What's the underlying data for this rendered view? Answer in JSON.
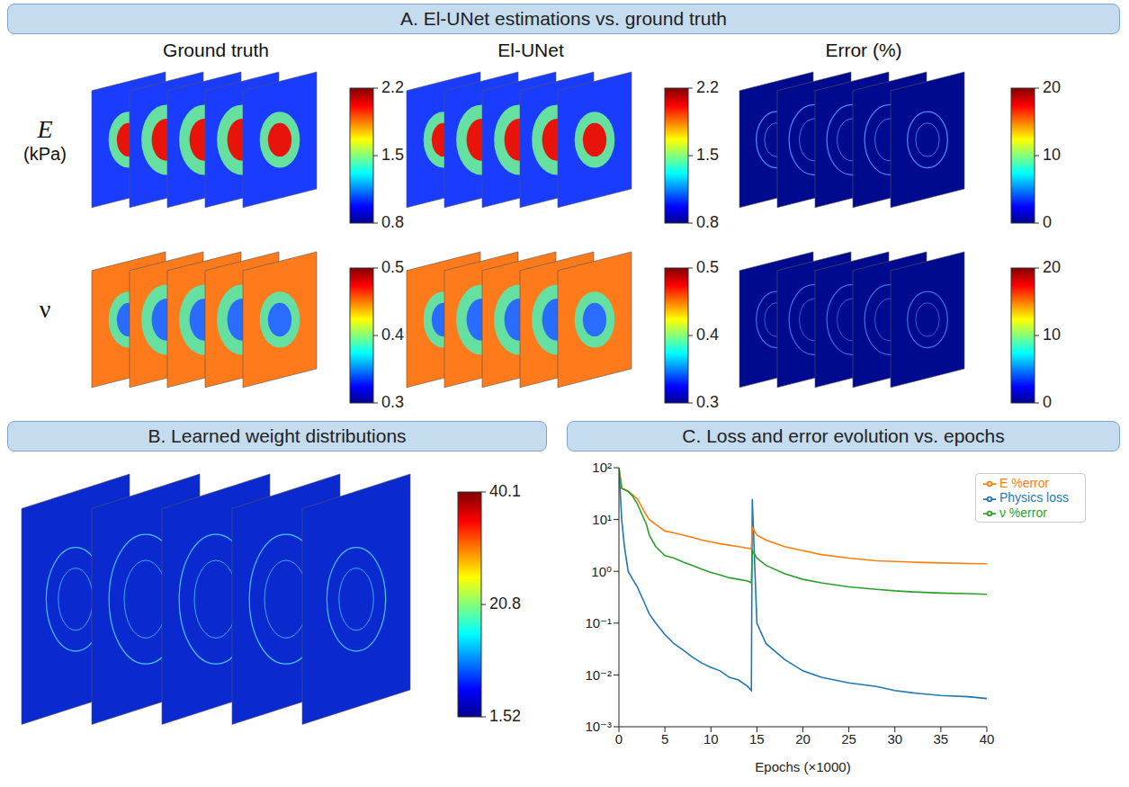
{
  "panels": {
    "A": {
      "title": "A. El-UNet estimations vs. ground truth",
      "columns": [
        "Ground truth",
        "El-UNet",
        "Error (%)"
      ],
      "rows": [
        {
          "label": "E",
          "unit": "(kPa)",
          "colorbar": {
            "range": [
              0.8,
              2.2
            ],
            "ticks": [
              0.8,
              1.5,
              2.2
            ]
          },
          "error_colorbar": {
            "range": [
              0,
              20
            ],
            "ticks": [
              0,
              10,
              20
            ]
          }
        },
        {
          "label": "ν",
          "colorbar": {
            "range": [
              0.3,
              0.5
            ],
            "ticks": [
              0.3,
              0.4,
              0.5
            ]
          },
          "error_colorbar": {
            "range": [
              0,
              20
            ],
            "ticks": [
              0,
              10,
              20
            ]
          }
        }
      ]
    },
    "B": {
      "title": "B. Learned weight distributions",
      "colorbar": {
        "range": [
          1.52,
          40.1
        ],
        "ticks": [
          1.52,
          20.8,
          40.1
        ]
      }
    }
  },
  "chart_data": {
    "type": "line",
    "title": "C. Loss and error evolution vs. epochs",
    "x_label": "Epochs (×1000)",
    "x": [
      0,
      0.3,
      0.6,
      1,
      1.5,
      2,
      3,
      3.3,
      4,
      5,
      6,
      7,
      8,
      9,
      10,
      11,
      12,
      13,
      14,
      14.4,
      14.5,
      15,
      16,
      18,
      20,
      22,
      25,
      28,
      30,
      32,
      35,
      38,
      40
    ],
    "series": [
      {
        "name": "Physics loss",
        "color": "#1f77b4",
        "values": [
          100,
          10,
          3,
          1,
          0.7,
          0.5,
          0.2,
          0.15,
          0.1,
          0.06,
          0.04,
          0.03,
          0.022,
          0.017,
          0.014,
          0.012,
          0.009,
          0.008,
          0.006,
          0.005,
          25,
          0.1,
          0.04,
          0.02,
          0.012,
          0.009,
          0.007,
          0.006,
          0.005,
          0.0045,
          0.004,
          0.0038,
          0.0035
        ]
      },
      {
        "name": "E %error",
        "color": "#ff7f0e",
        "values": [
          100,
          40,
          38,
          35,
          30,
          25,
          12,
          10,
          8,
          6,
          5.5,
          5,
          4.5,
          4,
          3.7,
          3.4,
          3.2,
          3,
          2.8,
          2.7,
          7,
          5,
          4,
          3,
          2.5,
          2.1,
          1.8,
          1.6,
          1.55,
          1.5,
          1.45,
          1.42,
          1.4
        ]
      },
      {
        "name": "ν %error",
        "color": "#2ca02c",
        "values": [
          100,
          40,
          38,
          35,
          28,
          20,
          8,
          5,
          3,
          2,
          1.8,
          1.5,
          1.3,
          1.1,
          0.95,
          0.85,
          0.75,
          0.7,
          0.65,
          0.6,
          2.5,
          1.8,
          1.3,
          0.9,
          0.7,
          0.6,
          0.5,
          0.45,
          0.42,
          0.4,
          0.38,
          0.37,
          0.36
        ]
      }
    ],
    "xlim": [
      0,
      40
    ],
    "xticks": [
      0,
      5,
      10,
      15,
      20,
      25,
      30,
      35,
      40
    ],
    "ylim": [
      0.001,
      100
    ],
    "yticks": [
      {
        "value": 0.001,
        "label": "10⁻³"
      },
      {
        "value": 0.01,
        "label": "10⁻²"
      },
      {
        "value": 0.1,
        "label": "10⁻¹"
      },
      {
        "value": 1,
        "label": "10⁰"
      },
      {
        "value": 10,
        "label": "10¹"
      },
      {
        "value": 100,
        "label": "10²"
      }
    ],
    "log": "y",
    "grid": false,
    "legend": "upper right"
  }
}
